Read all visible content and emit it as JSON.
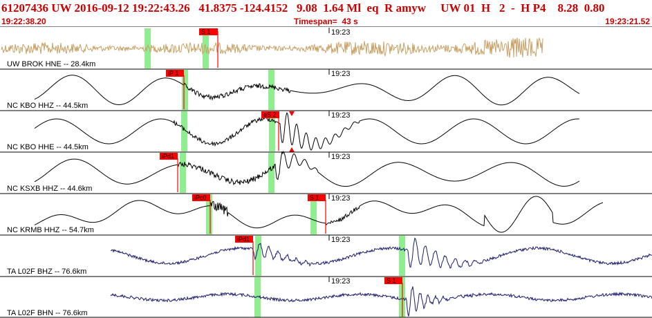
{
  "header": {
    "event_line": "61207436 UW 2016-09-12 19:22:43.26   41.8375 -124.4152   9.08  1.64 Ml  eq  R amyw     UW 01  H   2  -  H P4    8.28  0.80",
    "start_time": "19:22:38.20",
    "timespan": "Timespan=  43 s",
    "end_time": "19:23:21.52"
  },
  "colors": {
    "header_text": "#cc0000",
    "pick_box": "#ff0000",
    "highlight": "#90ee90",
    "trace_tan": "#c8a064",
    "trace_black": "#000000",
    "trace_navy": "#1a1a6e"
  },
  "channels": [
    {
      "label": "UW BROK HNE -- 28.4km",
      "time_tick": "19:23",
      "color": "tan",
      "picks": [
        {
          "label": "S 1"
        }
      ]
    },
    {
      "label": "NC KBO HHZ -- 44.5km",
      "time_tick": "19:23",
      "color": "black",
      "picks": [
        {
          "label": "iP 1"
        }
      ]
    },
    {
      "label": "NC KBO HHE -- 44.5km",
      "time_tick": "19:23",
      "color": "black",
      "picks": [
        {
          "label": "eS 2"
        }
      ]
    },
    {
      "label": "NC KSXB HHZ -- 44.6km",
      "time_tick": "19:23",
      "color": "black",
      "picks": [
        {
          "label": "iPd1"
        }
      ]
    },
    {
      "label": "NC KRMB HHZ -- 54.7km",
      "time_tick": "19:23",
      "color": "black",
      "picks": [
        {
          "label": "iPc0"
        },
        {
          "label": "S 1"
        }
      ]
    },
    {
      "label": "TA L02F BHZ -- 76.6km",
      "time_tick": "19:23",
      "color": "navy",
      "picks": [
        {
          "label": "iPd1"
        }
      ]
    },
    {
      "label": "TA L02F BHN -- 76.6km",
      "time_tick": "19:23",
      "color": "navy",
      "picks": [
        {
          "label": "S 1"
        }
      ]
    }
  ]
}
